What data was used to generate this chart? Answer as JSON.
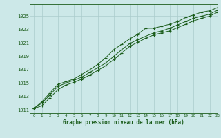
{
  "title": "Graphe pression niveau de la mer (hPa)",
  "bg_color": "#cce8e8",
  "line_color": "#1a5c1a",
  "grid_color": "#aacccc",
  "xlim": [
    -0.5,
    23
  ],
  "ylim": [
    1010.5,
    1026.8
  ],
  "yticks": [
    1011,
    1013,
    1015,
    1017,
    1019,
    1021,
    1023,
    1025
  ],
  "xticks": [
    0,
    1,
    2,
    3,
    4,
    5,
    6,
    7,
    8,
    9,
    10,
    11,
    12,
    13,
    14,
    15,
    16,
    17,
    18,
    19,
    20,
    21,
    22,
    23
  ],
  "line1": [
    1011.2,
    1012.2,
    1013.5,
    1014.8,
    1015.2,
    1015.6,
    1016.3,
    1017.0,
    1017.8,
    1018.8,
    1020.0,
    1020.8,
    1021.6,
    1022.3,
    1023.2,
    1023.2,
    1023.5,
    1023.8,
    1024.2,
    1024.8,
    1025.2,
    1025.6,
    1025.8,
    1026.3
  ],
  "line2": [
    1011.2,
    1012.0,
    1013.2,
    1014.5,
    1015.0,
    1015.4,
    1015.9,
    1016.6,
    1017.3,
    1018.0,
    1019.0,
    1020.0,
    1020.9,
    1021.5,
    1022.0,
    1022.5,
    1022.8,
    1023.2,
    1023.7,
    1024.2,
    1024.7,
    1025.0,
    1025.3,
    1025.9
  ],
  "line3": [
    1011.2,
    1011.6,
    1012.8,
    1014.0,
    1014.7,
    1015.1,
    1015.6,
    1016.2,
    1016.9,
    1017.6,
    1018.5,
    1019.5,
    1020.5,
    1021.1,
    1021.7,
    1022.2,
    1022.5,
    1022.8,
    1023.3,
    1023.8,
    1024.3,
    1024.7,
    1025.0,
    1025.6
  ]
}
